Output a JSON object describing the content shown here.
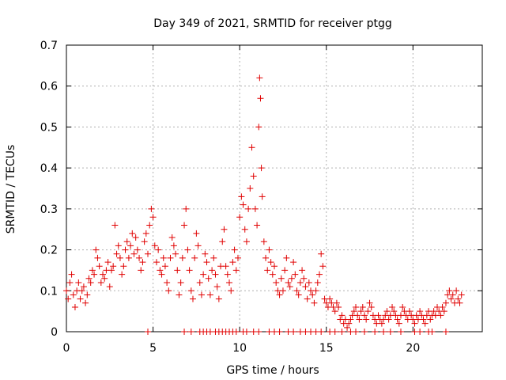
{
  "chart_data": {
    "type": "scatter",
    "title": "Day 349 of 2021, SRMTID for receiver ptgg",
    "xlabel": "GPS time / hours",
    "ylabel": "SRMTID / TECUs",
    "xlim": [
      0,
      24
    ],
    "ylim": [
      0,
      0.7
    ],
    "xticks": [
      0,
      5,
      10,
      15,
      20
    ],
    "xtick_labels": [
      "0",
      "5",
      "10",
      "15",
      "20"
    ],
    "yticks": [
      0,
      0.1,
      0.2,
      0.3,
      0.4,
      0.5,
      0.6,
      0.7
    ],
    "ytick_labels": [
      "0",
      "0.1",
      "0.2",
      "0.3",
      "0.4",
      "0.5",
      "0.6",
      "0.7"
    ],
    "grid": true,
    "marker": "+",
    "series": [
      {
        "name": "SRMTID",
        "color": "#e00000",
        "points": [
          [
            0.0,
            0.1
          ],
          [
            0.1,
            0.08
          ],
          [
            0.2,
            0.12
          ],
          [
            0.3,
            0.14
          ],
          [
            0.4,
            0.09
          ],
          [
            0.5,
            0.06
          ],
          [
            0.6,
            0.1
          ],
          [
            0.7,
            0.12
          ],
          [
            0.8,
            0.08
          ],
          [
            0.9,
            0.1
          ],
          [
            1.0,
            0.11
          ],
          [
            1.1,
            0.07
          ],
          [
            1.2,
            0.09
          ],
          [
            1.3,
            0.13
          ],
          [
            1.4,
            0.12
          ],
          [
            1.5,
            0.15
          ],
          [
            1.6,
            0.14
          ],
          [
            1.7,
            0.2
          ],
          [
            1.8,
            0.18
          ],
          [
            1.9,
            0.16
          ],
          [
            2.0,
            0.12
          ],
          [
            2.1,
            0.14
          ],
          [
            2.2,
            0.13
          ],
          [
            2.3,
            0.15
          ],
          [
            2.4,
            0.17
          ],
          [
            2.5,
            0.11
          ],
          [
            2.6,
            0.15
          ],
          [
            2.7,
            0.16
          ],
          [
            2.8,
            0.26
          ],
          [
            2.9,
            0.19
          ],
          [
            3.0,
            0.21
          ],
          [
            3.1,
            0.18
          ],
          [
            3.2,
            0.14
          ],
          [
            3.3,
            0.16
          ],
          [
            3.4,
            0.2
          ],
          [
            3.5,
            0.22
          ],
          [
            3.6,
            0.18
          ],
          [
            3.7,
            0.21
          ],
          [
            3.8,
            0.24
          ],
          [
            3.9,
            0.19
          ],
          [
            4.0,
            0.23
          ],
          [
            4.1,
            0.2
          ],
          [
            4.2,
            0.18
          ],
          [
            4.3,
            0.15
          ],
          [
            4.4,
            0.17
          ],
          [
            4.5,
            0.22
          ],
          [
            4.6,
            0.24
          ],
          [
            4.7,
            0.19
          ],
          [
            4.8,
            0.26
          ],
          [
            4.9,
            0.3
          ],
          [
            5.0,
            0.28
          ],
          [
            5.1,
            0.21
          ],
          [
            5.2,
            0.17
          ],
          [
            5.3,
            0.2
          ],
          [
            5.4,
            0.15
          ],
          [
            5.5,
            0.14
          ],
          [
            5.6,
            0.18
          ],
          [
            5.7,
            0.16
          ],
          [
            5.8,
            0.12
          ],
          [
            5.9,
            0.1
          ],
          [
            6.0,
            0.18
          ],
          [
            6.1,
            0.23
          ],
          [
            6.2,
            0.21
          ],
          [
            6.3,
            0.19
          ],
          [
            6.4,
            0.15
          ],
          [
            6.5,
            0.09
          ],
          [
            6.6,
            0.12
          ],
          [
            6.7,
            0.18
          ],
          [
            6.8,
            0.26
          ],
          [
            6.9,
            0.3
          ],
          [
            7.0,
            0.2
          ],
          [
            7.1,
            0.15
          ],
          [
            7.2,
            0.1
          ],
          [
            7.3,
            0.08
          ],
          [
            7.4,
            0.18
          ],
          [
            7.5,
            0.24
          ],
          [
            7.6,
            0.21
          ],
          [
            7.7,
            0.12
          ],
          [
            7.8,
            0.09
          ],
          [
            7.9,
            0.14
          ],
          [
            8.0,
            0.19
          ],
          [
            8.1,
            0.17
          ],
          [
            8.2,
            0.13
          ],
          [
            8.3,
            0.09
          ],
          [
            8.4,
            0.15
          ],
          [
            8.5,
            0.18
          ],
          [
            8.6,
            0.14
          ],
          [
            8.7,
            0.11
          ],
          [
            8.8,
            0.08
          ],
          [
            8.9,
            0.16
          ],
          [
            9.0,
            0.22
          ],
          [
            9.1,
            0.25
          ],
          [
            9.2,
            0.16
          ],
          [
            9.3,
            0.14
          ],
          [
            9.4,
            0.12
          ],
          [
            9.5,
            0.1
          ],
          [
            9.6,
            0.17
          ],
          [
            9.7,
            0.2
          ],
          [
            9.8,
            0.15
          ],
          [
            9.9,
            0.18
          ],
          [
            10.0,
            0.28
          ],
          [
            10.1,
            0.33
          ],
          [
            10.2,
            0.31
          ],
          [
            10.3,
            0.25
          ],
          [
            10.4,
            0.22
          ],
          [
            10.5,
            0.3
          ],
          [
            10.6,
            0.35
          ],
          [
            10.7,
            0.45
          ],
          [
            10.8,
            0.38
          ],
          [
            10.9,
            0.3
          ],
          [
            11.0,
            0.26
          ],
          [
            11.1,
            0.5
          ],
          [
            11.15,
            0.62
          ],
          [
            11.2,
            0.57
          ],
          [
            11.25,
            0.4
          ],
          [
            11.3,
            0.33
          ],
          [
            11.4,
            0.22
          ],
          [
            11.5,
            0.18
          ],
          [
            11.6,
            0.15
          ],
          [
            11.7,
            0.2
          ],
          [
            11.8,
            0.17
          ],
          [
            11.9,
            0.14
          ],
          [
            12.0,
            0.16
          ],
          [
            12.1,
            0.12
          ],
          [
            12.2,
            0.1
          ],
          [
            12.3,
            0.09
          ],
          [
            12.4,
            0.13
          ],
          [
            12.5,
            0.1
          ],
          [
            12.6,
            0.15
          ],
          [
            12.7,
            0.18
          ],
          [
            12.8,
            0.12
          ],
          [
            12.9,
            0.11
          ],
          [
            13.0,
            0.13
          ],
          [
            13.1,
            0.17
          ],
          [
            13.2,
            0.14
          ],
          [
            13.3,
            0.1
          ],
          [
            13.4,
            0.09
          ],
          [
            13.5,
            0.12
          ],
          [
            13.6,
            0.15
          ],
          [
            13.7,
            0.13
          ],
          [
            13.8,
            0.11
          ],
          [
            13.9,
            0.08
          ],
          [
            14.0,
            0.12
          ],
          [
            14.1,
            0.1
          ],
          [
            14.2,
            0.09
          ],
          [
            14.3,
            0.07
          ],
          [
            14.4,
            0.1
          ],
          [
            14.5,
            0.12
          ],
          [
            14.6,
            0.14
          ],
          [
            14.7,
            0.19
          ],
          [
            14.8,
            0.16
          ],
          [
            14.9,
            0.08
          ],
          [
            15.0,
            0.07
          ],
          [
            15.1,
            0.06
          ],
          [
            15.2,
            0.08
          ],
          [
            15.3,
            0.07
          ],
          [
            15.4,
            0.06
          ],
          [
            15.5,
            0.05
          ],
          [
            15.6,
            0.07
          ],
          [
            15.7,
            0.06
          ],
          [
            15.8,
            0.03
          ],
          [
            15.9,
            0.04
          ],
          [
            16.0,
            0.02
          ],
          [
            16.1,
            0.03
          ],
          [
            16.2,
            0.01
          ],
          [
            16.3,
            0.02
          ],
          [
            16.4,
            0.03
          ],
          [
            16.5,
            0.04
          ],
          [
            16.6,
            0.05
          ],
          [
            16.7,
            0.06
          ],
          [
            16.8,
            0.04
          ],
          [
            16.9,
            0.03
          ],
          [
            17.0,
            0.05
          ],
          [
            17.1,
            0.06
          ],
          [
            17.2,
            0.04
          ],
          [
            17.3,
            0.03
          ],
          [
            17.4,
            0.05
          ],
          [
            17.5,
            0.07
          ],
          [
            17.6,
            0.06
          ],
          [
            17.7,
            0.04
          ],
          [
            17.8,
            0.03
          ],
          [
            17.9,
            0.02
          ],
          [
            18.0,
            0.04
          ],
          [
            18.1,
            0.03
          ],
          [
            18.2,
            0.02
          ],
          [
            18.3,
            0.03
          ],
          [
            18.4,
            0.04
          ],
          [
            18.5,
            0.05
          ],
          [
            18.6,
            0.03
          ],
          [
            18.7,
            0.04
          ],
          [
            18.8,
            0.06
          ],
          [
            18.9,
            0.05
          ],
          [
            19.0,
            0.04
          ],
          [
            19.1,
            0.03
          ],
          [
            19.2,
            0.02
          ],
          [
            19.3,
            0.04
          ],
          [
            19.4,
            0.06
          ],
          [
            19.5,
            0.05
          ],
          [
            19.6,
            0.04
          ],
          [
            19.7,
            0.03
          ],
          [
            19.8,
            0.05
          ],
          [
            19.9,
            0.04
          ],
          [
            20.0,
            0.03
          ],
          [
            20.1,
            0.02
          ],
          [
            20.2,
            0.04
          ],
          [
            20.3,
            0.03
          ],
          [
            20.4,
            0.05
          ],
          [
            20.5,
            0.04
          ],
          [
            20.6,
            0.03
          ],
          [
            20.7,
            0.02
          ],
          [
            20.8,
            0.04
          ],
          [
            20.9,
            0.05
          ],
          [
            21.0,
            0.03
          ],
          [
            21.1,
            0.04
          ],
          [
            21.2,
            0.05
          ],
          [
            21.3,
            0.04
          ],
          [
            21.4,
            0.06
          ],
          [
            21.5,
            0.05
          ],
          [
            21.6,
            0.04
          ],
          [
            21.7,
            0.06
          ],
          [
            21.8,
            0.05
          ],
          [
            21.9,
            0.07
          ],
          [
            22.0,
            0.09
          ],
          [
            22.1,
            0.1
          ],
          [
            22.2,
            0.08
          ],
          [
            22.3,
            0.09
          ],
          [
            22.4,
            0.07
          ],
          [
            22.5,
            0.1
          ],
          [
            22.6,
            0.08
          ],
          [
            22.7,
            0.07
          ],
          [
            22.8,
            0.09
          ]
        ]
      },
      {
        "name": "zero-level markers",
        "color": "#e00000",
        "points": [
          [
            4.7,
            0
          ],
          [
            6.8,
            0
          ],
          [
            7.2,
            0
          ],
          [
            7.7,
            0
          ],
          [
            7.9,
            0
          ],
          [
            8.1,
            0
          ],
          [
            8.3,
            0
          ],
          [
            8.6,
            0
          ],
          [
            8.8,
            0
          ],
          [
            9.0,
            0
          ],
          [
            9.2,
            0
          ],
          [
            9.4,
            0
          ],
          [
            9.6,
            0
          ],
          [
            9.8,
            0
          ],
          [
            10.2,
            0
          ],
          [
            10.4,
            0
          ],
          [
            10.8,
            0
          ],
          [
            11.1,
            0
          ],
          [
            11.7,
            0
          ],
          [
            12.0,
            0
          ],
          [
            12.3,
            0
          ],
          [
            12.8,
            0
          ],
          [
            13.1,
            0
          ],
          [
            13.5,
            0
          ],
          [
            13.8,
            0
          ],
          [
            14.1,
            0
          ],
          [
            14.4,
            0
          ],
          [
            14.7,
            0
          ],
          [
            15.2,
            0
          ],
          [
            15.5,
            0
          ],
          [
            15.9,
            0
          ],
          [
            16.4,
            0
          ],
          [
            16.7,
            0
          ],
          [
            17.2,
            0
          ],
          [
            17.8,
            0
          ],
          [
            18.3,
            0
          ],
          [
            18.7,
            0
          ],
          [
            19.3,
            0
          ],
          [
            20.1,
            0
          ],
          [
            20.4,
            0
          ],
          [
            20.9,
            0
          ],
          [
            21.1,
            0
          ],
          [
            21.9,
            0
          ]
        ]
      }
    ]
  }
}
